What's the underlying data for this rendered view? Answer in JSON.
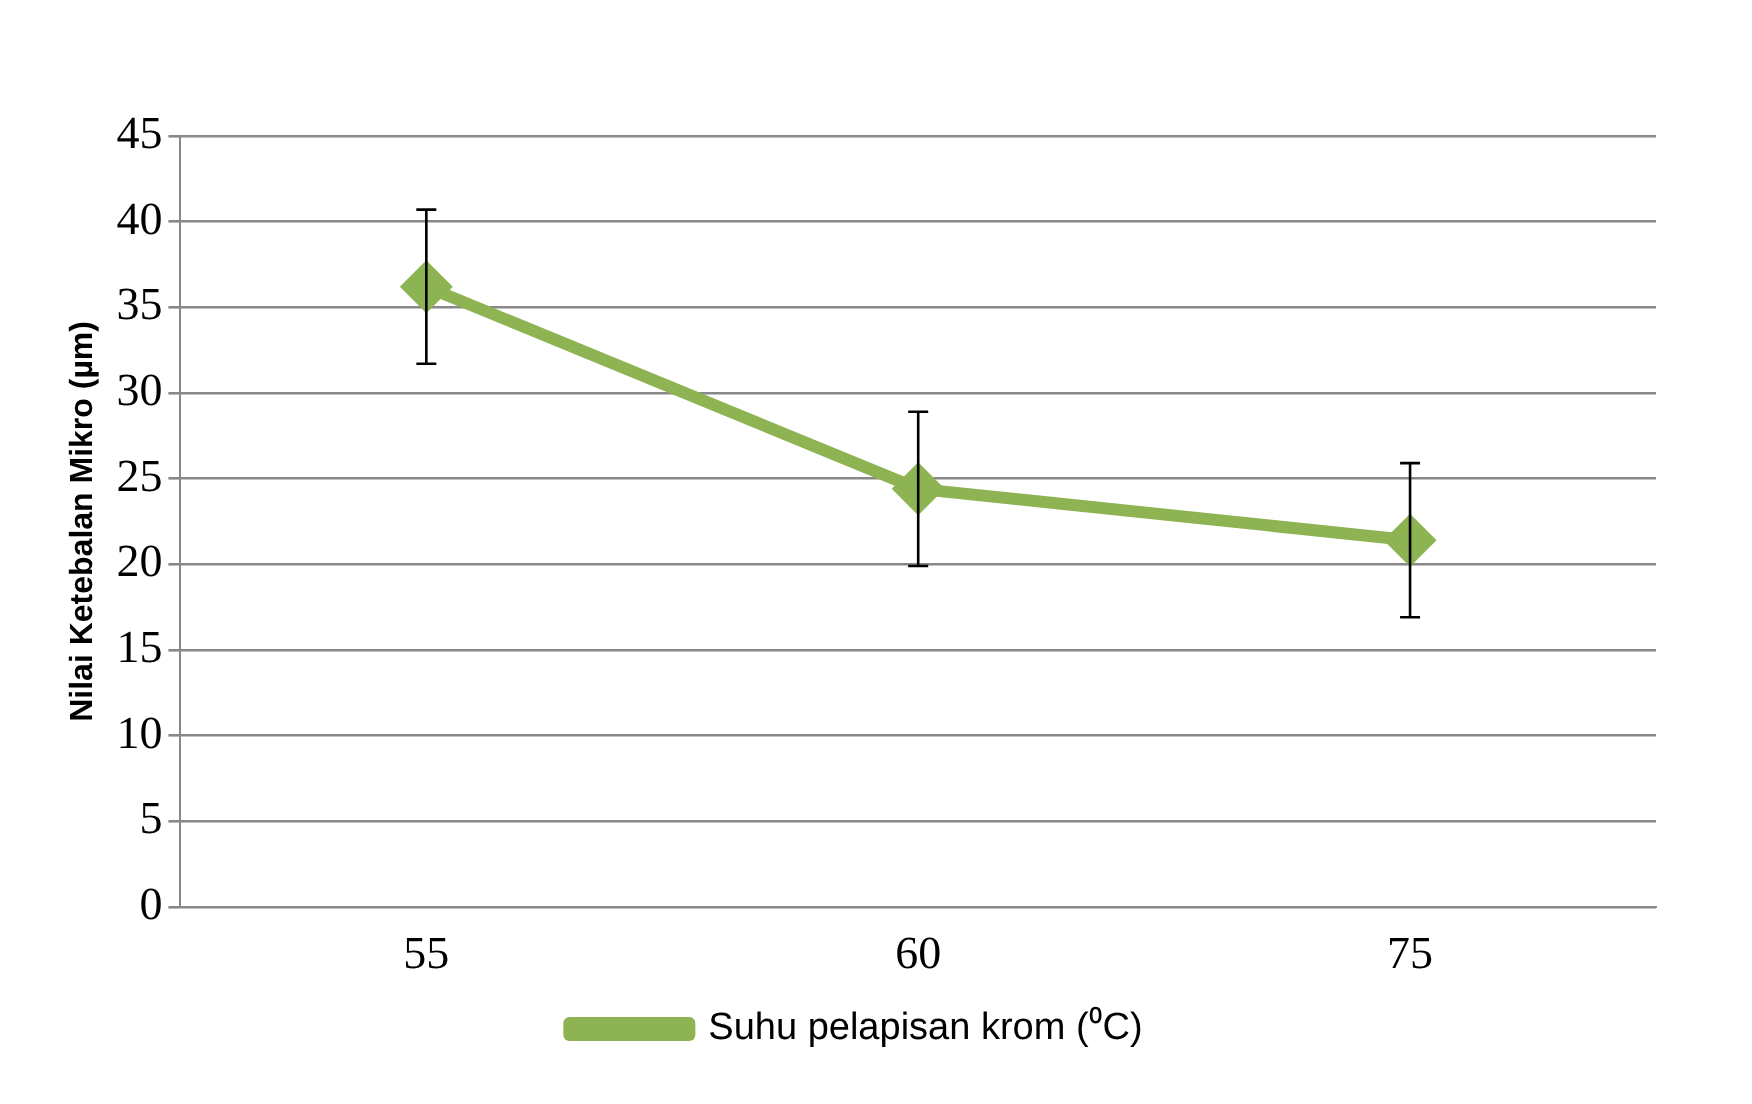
{
  "chart_data": {
    "type": "line",
    "ylabel": "Nilai Ketebalan Mikro (µm)",
    "categories": [
      "55",
      "60",
      "75"
    ],
    "series": [
      {
        "name": "Suhu pelapisan krom (⁰C)",
        "color": "#8db352",
        "values": [
          36.2,
          24.4,
          21.4
        ],
        "errors": [
          4.5,
          4.5,
          4.5
        ]
      }
    ],
    "ylim": [
      0,
      45
    ],
    "yticks": [
      0,
      5,
      10,
      15,
      20,
      25,
      30,
      35,
      40,
      45
    ],
    "grid": "y",
    "legend": "bottom",
    "marker": "diamond",
    "line_style": "solid"
  }
}
